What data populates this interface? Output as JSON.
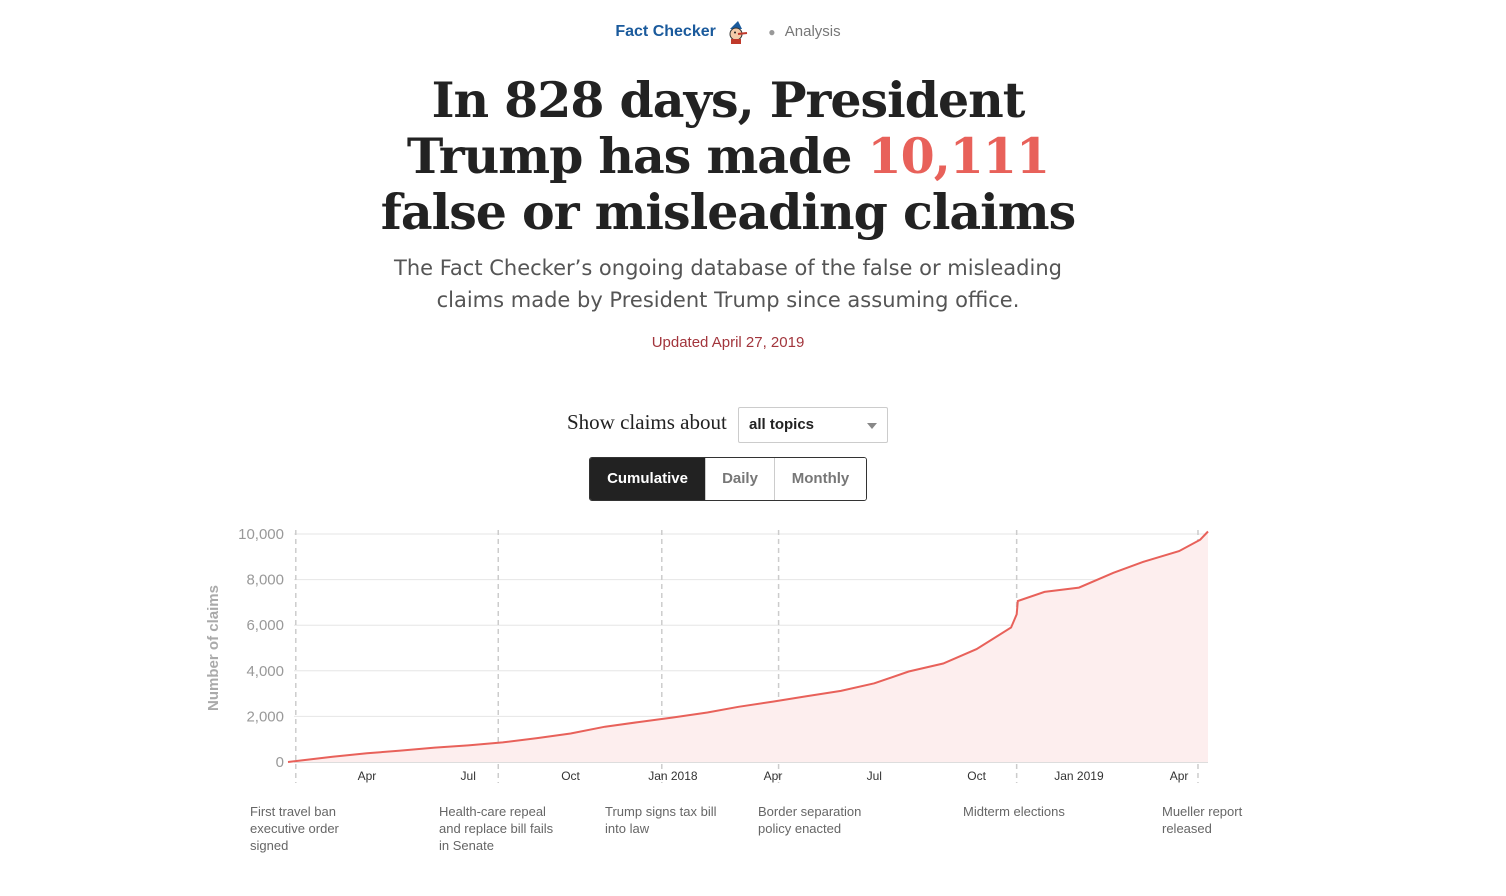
{
  "kicker": {
    "brand": "Fact Checker",
    "section": "Analysis"
  },
  "headline": {
    "line1": "In 828 days, President",
    "line2_pre": "Trump has made ",
    "number": "10,111",
    "line3": "false or misleading claims"
  },
  "dek": {
    "line1": "The Fact Checker’s ongoing database of the false or misleading",
    "line2": "claims made by President Trump since assuming office."
  },
  "updated": "Updated April 27, 2019",
  "filter": {
    "label": "Show claims about",
    "selected": "all topics"
  },
  "view_toggle": [
    "Cumulative",
    "Daily",
    "Monthly"
  ],
  "active_view": "Cumulative",
  "colors": {
    "accent": "#e8615a",
    "area": "#fdeeee",
    "brand": "#1a5a9c",
    "updated": "#a2353c"
  },
  "events": [
    {
      "lines": [
        "First travel ban",
        "executive order",
        "signed"
      ]
    },
    {
      "lines": [
        "Health-care repeal",
        "and replace bill fails",
        "in Senate"
      ]
    },
    {
      "lines": [
        "Trump signs tax bill",
        "into law"
      ]
    },
    {
      "lines": [
        "Border separation",
        "policy enacted"
      ]
    },
    {
      "lines": [
        "Midterm elections"
      ]
    },
    {
      "lines": [
        "Mueller report",
        "released"
      ]
    }
  ],
  "chart_data": {
    "type": "area",
    "ylabel": "Number of claims",
    "ylim": [
      0,
      10000
    ],
    "y_ticks": [
      "0",
      "2,000",
      "4,000",
      "6,000",
      "8,000",
      "10,000"
    ],
    "x_ticks": [
      "Apr",
      "Jul",
      "Oct",
      "Jan 2018",
      "Apr",
      "Jul",
      "Oct",
      "Jan 2019",
      "Apr"
    ],
    "grid": true,
    "series": [
      {
        "x": [
          "2017-01-20",
          "2017-03-01",
          "2017-04-01",
          "2017-05-01",
          "2017-06-01",
          "2017-07-01",
          "2017-08-01",
          "2017-09-01",
          "2017-10-01",
          "2017-11-01",
          "2017-12-01",
          "2018-01-01",
          "2018-02-01",
          "2018-03-01",
          "2018-04-01",
          "2018-05-01",
          "2018-06-01",
          "2018-07-01",
          "2018-08-01",
          "2018-09-01",
          "2018-10-01",
          "2018-11-01",
          "2018-11-06",
          "2018-11-07",
          "2018-12-01",
          "2019-01-01",
          "2019-02-01",
          "2019-03-01",
          "2019-04-01",
          "2019-04-20",
          "2019-04-27"
        ],
        "values": [
          0,
          230,
          380,
          500,
          630,
          730,
          860,
          1050,
          1250,
          1550,
          1750,
          1950,
          2170,
          2420,
          2650,
          2880,
          3120,
          3450,
          3970,
          4320,
          4950,
          5900,
          6480,
          7060,
          7460,
          7650,
          8300,
          8800,
          9250,
          9750,
          10111
        ]
      }
    ],
    "event_dates": [
      "2017-01-27",
      "2017-07-28",
      "2017-12-22",
      "2018-04-06",
      "2018-11-06",
      "2019-04-18"
    ]
  }
}
